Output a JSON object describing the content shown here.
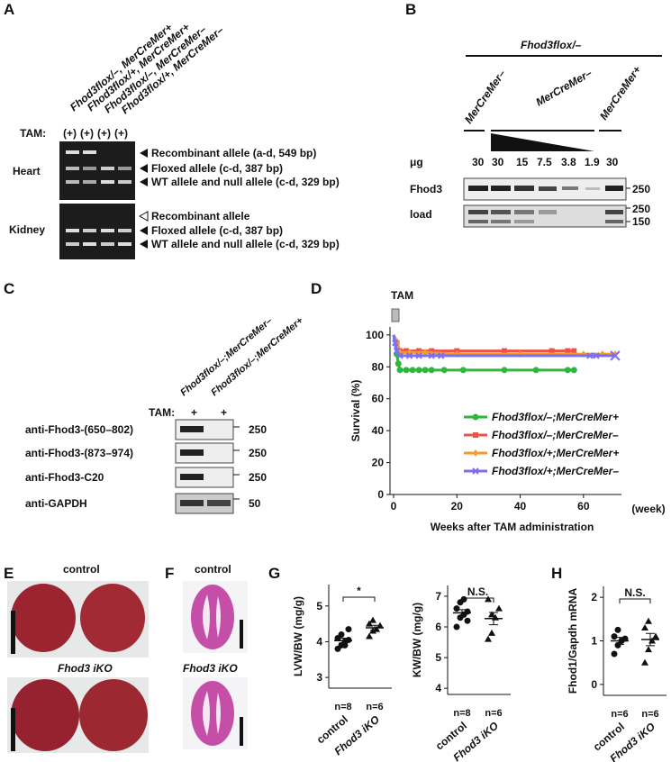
{
  "panels": {
    "A": {
      "letter": "A",
      "lanes": [
        "Fhod3flox/–, MerCreMer+",
        "Fhod3flox/+, MerCreMer+",
        "Fhod3flox/–, MerCreMer–",
        "Fhod3flox/+, MerCreMer–"
      ],
      "tam_label": "TAM:",
      "tam": [
        "(+)",
        "(+)",
        "(+)",
        "(+)"
      ],
      "heart": {
        "label": "Heart",
        "bands": [
          "Recombinant allele (a-d, 549 bp)",
          "Floxed allele (c-d, 387 bp)",
          "WT allele and null allele (c-d, 329 bp)"
        ]
      },
      "kidney": {
        "label": "Kidney",
        "bands": [
          "Recombinant allele",
          "Floxed allele (c-d, 387 bp)",
          "WT allele and null allele (c-d, 329 bp)"
        ]
      }
    },
    "B": {
      "letter": "B",
      "genotype": "Fhod3flox/–",
      "groups": [
        "MerCreMer–",
        "MerCreMer–",
        "MerCreMer+"
      ],
      "ug_label": "μg",
      "amounts": [
        "30",
        "30",
        "15",
        "7.5",
        "3.8",
        "1.9",
        "30"
      ],
      "rows": [
        {
          "label": "Fhod3",
          "markers": [
            "250"
          ]
        },
        {
          "label": "load",
          "markers": [
            "250",
            "150"
          ]
        }
      ]
    },
    "C": {
      "letter": "C",
      "lanes": [
        "Fhod3flox/–;MerCreMer–",
        "Fhod3flox/–;MerCreMer+"
      ],
      "tam_label": "TAM:",
      "tam": [
        "+",
        "+"
      ],
      "rows": [
        {
          "label": "anti-Fhod3-(650–802)",
          "marker": "250"
        },
        {
          "label": "anti-Fhod3-(873–974)",
          "marker": "250"
        },
        {
          "label": "anti-Fhod3-C20",
          "marker": "250"
        },
        {
          "label": "anti-GAPDH",
          "marker": "50"
        }
      ]
    },
    "E": {
      "letter": "E",
      "control": "control",
      "ko": "Fhod3 iKO"
    },
    "F": {
      "letter": "F",
      "control": "control",
      "ko": "Fhod3 iKO"
    }
  },
  "chart_data": [
    {
      "type": "line",
      "panel": "D",
      "annotation": "TAM",
      "xlabel": "Weeks after TAM administration",
      "xunit": "(week)",
      "ylabel": "Survival (%)",
      "xlim": [
        0,
        72
      ],
      "ylim": [
        0,
        105
      ],
      "xticks": [
        0,
        20,
        40,
        60
      ],
      "yticks": [
        0,
        20,
        40,
        60,
        80,
        100
      ],
      "series": [
        {
          "name": "Fhod3flox/–;MerCreMer+",
          "color": "#2db83d",
          "marker": "circle",
          "x": [
            0,
            1,
            1.5,
            2,
            4,
            6,
            8,
            10,
            12,
            16,
            22,
            35,
            45,
            55,
            57
          ],
          "values": [
            100,
            88,
            82,
            78,
            78,
            78,
            78,
            78,
            78,
            78,
            78,
            78,
            78,
            78,
            78
          ]
        },
        {
          "name": "Fhod3flox/–;MerCreMer–",
          "color": "#f0504a",
          "marker": "square",
          "x": [
            0,
            1,
            2,
            4,
            8,
            12,
            20,
            35,
            50,
            55,
            57
          ],
          "values": [
            100,
            95,
            90,
            90,
            90,
            90,
            90,
            90,
            90,
            90,
            90
          ]
        },
        {
          "name": "Fhod3flox/+;MerCreMer+",
          "color": "#f59a2c",
          "marker": "diamond",
          "x": [
            0,
            1,
            2,
            5,
            10,
            20,
            40,
            60,
            66,
            70
          ],
          "values": [
            100,
            96,
            89,
            89,
            89,
            88,
            88,
            88,
            88,
            88
          ]
        },
        {
          "name": "Fhod3flox/+;MerCreMer–",
          "color": "#7d6ff0",
          "marker": "x",
          "x": [
            0,
            0.5,
            1,
            2,
            5,
            8,
            12,
            15,
            62,
            64,
            70
          ],
          "values": [
            100,
            95,
            90,
            87,
            87,
            87,
            87,
            87,
            87,
            87,
            87
          ]
        }
      ]
    },
    {
      "type": "dot",
      "panel": "G",
      "ylabel": "LVW/BW (mg/g)",
      "annotation": "*",
      "categories": [
        "control",
        "Fhod3 iKO"
      ],
      "n_labels": [
        "n=8",
        "n=6"
      ],
      "ylim": [
        2.7,
        5.6
      ],
      "yticks": [
        3,
        4,
        5
      ],
      "groups": [
        {
          "marker": "circle",
          "values": [
            3.8,
            3.9,
            4.0,
            4.05,
            4.1,
            4.2,
            3.9,
            4.35
          ],
          "mean": 4.03,
          "sem": 0.07
        },
        {
          "marker": "triangle",
          "values": [
            4.15,
            4.3,
            4.35,
            4.45,
            4.5,
            4.6
          ],
          "mean": 4.39,
          "sem": 0.07
        }
      ]
    },
    {
      "type": "dot",
      "ylabel": "KW/BW (mg/g)",
      "annotation": "N.S.",
      "categories": [
        "control",
        "Fhod3 iKO"
      ],
      "n_labels": [
        "n=8",
        "n=6"
      ],
      "ylim": [
        3.8,
        7.35
      ],
      "yticks": [
        4,
        5,
        6,
        7
      ],
      "groups": [
        {
          "marker": "circle",
          "values": [
            6.0,
            6.3,
            6.4,
            6.5,
            6.6,
            6.8,
            6.9,
            6.2
          ],
          "mean": 6.46,
          "sem": 0.1
        },
        {
          "marker": "triangle",
          "values": [
            5.6,
            5.8,
            6.3,
            6.6,
            6.9,
            6.4
          ],
          "mean": 6.27,
          "sem": 0.2
        }
      ]
    },
    {
      "type": "dot",
      "panel": "H",
      "ylabel": "Fhod1/Gapdh mRNA",
      "annotation": "N.S.",
      "categories": [
        "control",
        "Fhod3 iKO"
      ],
      "n_labels": [
        "n=6",
        "n=6"
      ],
      "ylim": [
        -0.25,
        2.25
      ],
      "yticks": [
        0,
        1,
        2
      ],
      "groups": [
        {
          "marker": "circle",
          "values": [
            0.7,
            0.9,
            1.0,
            1.05,
            1.1,
            1.25
          ],
          "mean": 1.0,
          "sem": 0.08
        },
        {
          "marker": "triangle",
          "values": [
            0.5,
            0.8,
            1.0,
            1.1,
            1.3,
            1.45
          ],
          "mean": 1.03,
          "sem": 0.14
        }
      ]
    }
  ]
}
